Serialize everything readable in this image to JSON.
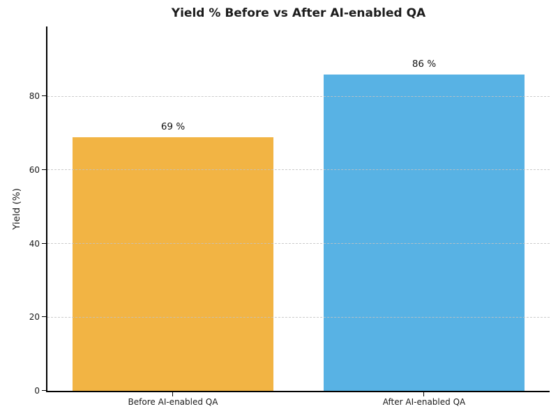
{
  "chart_data": {
    "type": "bar",
    "title": "Yield % Before vs After AI-enabled QA",
    "categories": [
      "Before AI-enabled QA",
      "After AI-enabled QA"
    ],
    "values": [
      69,
      86
    ],
    "value_labels": [
      "69 %",
      "86 %"
    ],
    "bar_colors": [
      "#F2B444",
      "#58B2E4"
    ],
    "xlabel": "",
    "ylabel": "Yield (%)",
    "ylim": [
      0,
      99
    ],
    "yticks": [
      0,
      20,
      40,
      60,
      80
    ],
    "bar_width_fraction": 0.8,
    "grid": "horizontal dashed, drawn over bars",
    "legend_position": "none"
  },
  "colors": {
    "background": "#FFFFFF",
    "axis": "#000000",
    "grid": "#C3C3C3",
    "text": "#1A1A1A"
  }
}
